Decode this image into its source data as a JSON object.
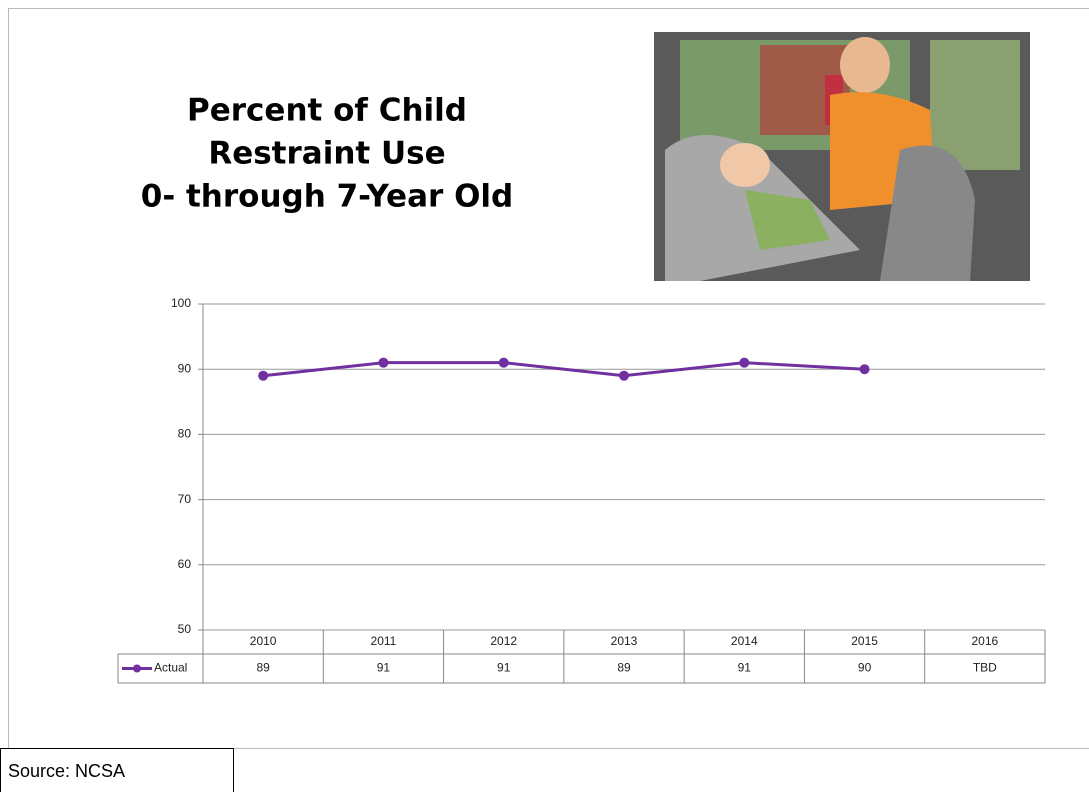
{
  "chart_data": {
    "type": "line",
    "title": [
      "Percent of Child",
      "Restraint Use",
      "0- through 7-Year Old"
    ],
    "categories": [
      "2010",
      "2011",
      "2012",
      "2013",
      "2014",
      "2015",
      "2016"
    ],
    "series": [
      {
        "name": "Actual",
        "color": "#7030a0",
        "values": [
          89,
          91,
          91,
          89,
          91,
          90,
          null
        ],
        "value_labels": [
          "89",
          "91",
          "91",
          "89",
          "91",
          "90",
          "TBD"
        ]
      }
    ],
    "ylim": [
      50,
      100
    ],
    "yticks": [
      50,
      60,
      70,
      80,
      90,
      100
    ],
    "grid": true,
    "source": "Source: NCSA"
  }
}
